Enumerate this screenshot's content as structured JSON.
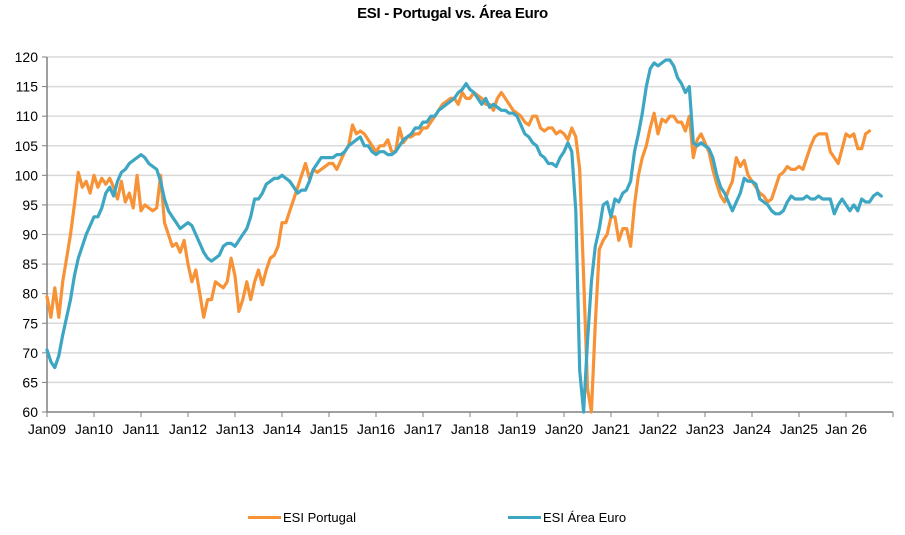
{
  "colors": {
    "portugal": "#F79236",
    "euro": "#3CA6C3",
    "grid": "#D9D9D9",
    "axis": "#808080"
  },
  "chart_data": {
    "type": "line",
    "title": "ESI  - Portugal vs. Área Euro",
    "xlabel": "",
    "ylabel": "",
    "ylim": [
      60,
      120
    ],
    "yticks": [
      60,
      65,
      70,
      75,
      80,
      85,
      90,
      95,
      100,
      105,
      110,
      115,
      120
    ],
    "xticks": [
      "Jan09",
      "Jan10",
      "Jan11",
      "Jan12",
      "Jan13",
      "Jan14",
      "Jan15",
      "Jan16",
      "Jan17",
      "Jan18",
      "Jan19",
      "Jan20",
      "Jan21",
      "Jan22",
      "Jan23",
      "Jan24",
      "Jan25",
      "Jan 26"
    ],
    "x_start": "2009-01",
    "x_end": "2027-01",
    "frequency": "monthly",
    "grid": true,
    "legend_position": "bottom",
    "series": [
      {
        "name": "ESI Portugal",
        "color": "#F79236",
        "values": [
          79.5,
          76,
          81,
          76,
          82,
          86,
          90,
          95,
          100.5,
          98,
          99,
          97,
          100,
          98,
          99.5,
          98.5,
          99.5,
          98,
          96,
          99,
          95.5,
          97,
          94.5,
          100,
          94,
          95,
          94.5,
          94,
          94.5,
          100,
          92,
          90,
          88,
          88.5,
          87,
          89,
          85,
          82,
          84,
          80,
          76,
          79,
          79,
          82,
          81.5,
          81,
          82,
          86,
          83,
          77,
          79,
          82,
          79,
          82,
          84,
          81.5,
          84,
          86,
          86.5,
          88,
          92,
          92,
          94,
          96,
          98,
          100,
          102,
          99.5,
          101,
          100.5,
          101,
          101.5,
          102,
          102,
          101,
          102.5,
          104,
          105,
          108.5,
          107,
          107.5,
          107,
          106,
          105,
          104,
          105,
          105,
          106,
          104,
          104,
          108,
          105.5,
          106.5,
          106.5,
          107,
          107,
          108,
          108,
          109,
          110,
          111,
          112,
          112.5,
          113,
          113,
          112,
          114,
          113,
          113,
          114,
          113.5,
          113,
          112,
          112,
          111,
          113,
          114,
          113,
          112,
          111,
          110.5,
          110,
          109,
          108.5,
          110,
          110,
          108,
          107.5,
          108,
          108,
          107,
          107.5,
          107,
          106,
          108,
          106.5,
          101,
          83,
          64,
          57,
          75,
          87.5,
          89,
          90,
          93,
          93,
          89,
          91,
          91,
          88,
          95,
          100,
          103,
          105,
          108,
          110.5,
          107,
          109.5,
          109,
          110,
          110,
          109,
          109,
          107.5,
          110,
          103,
          106,
          107,
          105.5,
          104,
          101,
          98.5,
          96.5,
          95.5,
          97.5,
          99,
          103,
          101.5,
          102.5,
          100,
          99,
          98,
          97,
          96.5,
          95.5,
          96,
          98,
          100,
          100.5,
          101.5,
          101,
          101,
          101.5,
          101,
          103,
          105,
          106.5,
          107,
          107,
          107,
          104,
          103,
          102,
          104.5,
          107,
          106.5,
          107,
          104.5,
          104.5,
          107,
          107.5
        ]
      },
      {
        "name": "ESI Área Euro",
        "color": "#3CA6C3",
        "values": [
          70.5,
          68.5,
          67.5,
          69.5,
          73,
          76,
          79,
          83,
          86,
          88,
          90,
          91.5,
          93,
          93,
          94.5,
          97,
          98,
          96.5,
          99,
          100.5,
          101,
          102,
          102.5,
          103,
          103.5,
          103,
          102,
          101.5,
          101,
          99,
          96,
          94,
          93,
          92,
          91,
          91.5,
          92,
          91.5,
          90,
          88.5,
          87,
          86,
          85.5,
          86,
          86.5,
          88,
          88.5,
          88.5,
          88,
          89,
          90,
          91,
          93,
          96,
          96,
          97,
          98.5,
          99,
          99.5,
          99.5,
          100,
          99.5,
          99,
          98,
          97,
          97.5,
          97.5,
          99,
          101,
          102,
          103,
          103,
          103,
          103,
          103.5,
          103.5,
          104,
          105,
          105.5,
          106,
          106.5,
          105,
          105,
          104,
          103.5,
          104,
          104,
          103.5,
          103.5,
          104,
          105,
          106,
          106.5,
          107,
          108,
          108,
          109,
          109,
          110,
          110,
          111,
          111.5,
          112,
          112.5,
          113,
          114,
          114.5,
          115.5,
          114.5,
          114,
          113,
          112,
          113,
          111.5,
          112,
          111.5,
          111,
          111,
          110.5,
          110.5,
          110,
          108.5,
          107,
          106.5,
          105.5,
          105,
          103.5,
          103,
          102,
          102,
          101.5,
          103,
          104,
          105.5,
          104,
          94,
          67,
          60,
          72,
          82,
          88,
          91,
          95,
          95.5,
          93,
          96,
          95.5,
          97,
          97.5,
          99,
          104,
          107,
          110.5,
          115,
          118,
          119,
          118.5,
          119,
          119.5,
          119.5,
          118.5,
          116.5,
          115.5,
          114,
          115,
          105.5,
          105,
          105.5,
          105,
          104.5,
          103,
          100,
          98,
          97,
          95.5,
          94,
          95.5,
          97,
          99.5,
          99,
          99,
          98.5,
          96,
          95.5,
          95,
          94,
          93.5,
          93.5,
          94,
          95.5,
          96.5,
          96,
          96,
          96,
          96.5,
          96,
          96,
          96.5,
          96,
          96,
          96,
          93.5,
          95,
          96,
          95,
          94,
          95,
          94,
          96,
          95.5,
          95.5,
          96.5,
          97,
          96.5
        ]
      }
    ]
  },
  "legend": {
    "items": [
      {
        "label": "ESI Portugal"
      },
      {
        "label": "ESI Área Euro"
      }
    ]
  }
}
